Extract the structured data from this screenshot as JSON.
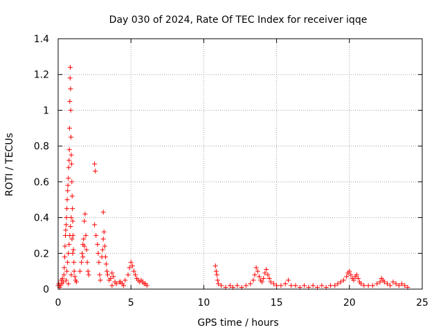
{
  "chart_data": {
    "type": "scatter",
    "title": "Day 030 of 2024, Rate Of TEC Index for receiver iqqe",
    "xlabel": "GPS time / hours",
    "ylabel": "ROTI / TECUs",
    "xlim": [
      0,
      25
    ],
    "ylim": [
      0,
      1.4
    ],
    "xticks": [
      0,
      5,
      10,
      15,
      20,
      25
    ],
    "xtick_labels": [
      "0",
      "5",
      "10",
      "15",
      "20",
      "25"
    ],
    "yticks": [
      0,
      0.2,
      0.4,
      0.6,
      0.8,
      1,
      1.2,
      1.4
    ],
    "ytick_labels": [
      "0",
      "0.2",
      "0.4",
      "0.6",
      "0.8",
      "1",
      "1.2",
      "1.4"
    ],
    "grid": true,
    "marker": "+",
    "series": [
      {
        "name": "ROTI",
        "color": "#ff0000",
        "points": [
          [
            0.0,
            0.02
          ],
          [
            0.05,
            0.03
          ],
          [
            0.1,
            0.01
          ],
          [
            0.15,
            0.02
          ],
          [
            0.2,
            0.05
          ],
          [
            0.25,
            0.03
          ],
          [
            0.3,
            0.06
          ],
          [
            0.35,
            0.04
          ],
          [
            0.4,
            0.08
          ],
          [
            0.42,
            0.12
          ],
          [
            0.45,
            0.18
          ],
          [
            0.47,
            0.24
          ],
          [
            0.5,
            0.3
          ],
          [
            0.52,
            0.33
          ],
          [
            0.55,
            0.36
          ],
          [
            0.57,
            0.4
          ],
          [
            0.6,
            0.45
          ],
          [
            0.62,
            0.5
          ],
          [
            0.65,
            0.55
          ],
          [
            0.67,
            0.58
          ],
          [
            0.7,
            0.62
          ],
          [
            0.72,
            0.68
          ],
          [
            0.75,
            0.72
          ],
          [
            0.77,
            0.78
          ],
          [
            0.78,
            0.9
          ],
          [
            0.8,
            1.05
          ],
          [
            0.82,
            1.18
          ],
          [
            0.83,
            1.24
          ],
          [
            0.85,
            1.12
          ],
          [
            0.86,
            1.0
          ],
          [
            0.88,
            0.85
          ],
          [
            0.9,
            0.75
          ],
          [
            0.92,
            0.7
          ],
          [
            0.94,
            0.6
          ],
          [
            0.96,
            0.52
          ],
          [
            0.98,
            0.45
          ],
          [
            1.0,
            0.38
          ],
          [
            1.02,
            0.3
          ],
          [
            1.05,
            0.22
          ],
          [
            1.08,
            0.15
          ],
          [
            1.1,
            0.1
          ],
          [
            1.15,
            0.07
          ],
          [
            1.2,
            0.05
          ],
          [
            1.25,
            0.04
          ],
          [
            0.6,
            0.1
          ],
          [
            0.65,
            0.15
          ],
          [
            0.7,
            0.2
          ],
          [
            0.75,
            0.25
          ],
          [
            0.8,
            0.3
          ],
          [
            0.85,
            0.35
          ],
          [
            0.9,
            0.4
          ],
          [
            0.95,
            0.28
          ],
          [
            1.0,
            0.2
          ],
          [
            0.55,
            0.05
          ],
          [
            0.7,
            0.03
          ],
          [
            0.9,
            0.08
          ],
          [
            1.5,
            0.1
          ],
          [
            1.6,
            0.15
          ],
          [
            1.65,
            0.2
          ],
          [
            1.7,
            0.25
          ],
          [
            1.75,
            0.28
          ],
          [
            1.8,
            0.38
          ],
          [
            1.85,
            0.42
          ],
          [
            1.9,
            0.3
          ],
          [
            1.95,
            0.22
          ],
          [
            2.0,
            0.15
          ],
          [
            2.05,
            0.1
          ],
          [
            2.1,
            0.08
          ],
          [
            1.7,
            0.18
          ],
          [
            1.8,
            0.24
          ],
          [
            2.5,
            0.7
          ],
          [
            2.55,
            0.66
          ],
          [
            2.5,
            0.36
          ],
          [
            2.6,
            0.3
          ],
          [
            2.7,
            0.25
          ],
          [
            2.75,
            0.2
          ],
          [
            2.8,
            0.15
          ],
          [
            2.85,
            0.08
          ],
          [
            2.9,
            0.05
          ],
          [
            3.0,
            0.18
          ],
          [
            3.05,
            0.22
          ],
          [
            3.1,
            0.28
          ],
          [
            3.1,
            0.43
          ],
          [
            3.15,
            0.32
          ],
          [
            3.2,
            0.24
          ],
          [
            3.25,
            0.18
          ],
          [
            3.3,
            0.14
          ],
          [
            3.35,
            0.1
          ],
          [
            3.4,
            0.08
          ],
          [
            3.5,
            0.05
          ],
          [
            3.6,
            0.06
          ],
          [
            3.7,
            0.09
          ],
          [
            3.8,
            0.07
          ],
          [
            3.9,
            0.04
          ],
          [
            4.0,
            0.03
          ],
          [
            4.2,
            0.04
          ],
          [
            4.4,
            0.03
          ],
          [
            4.6,
            0.05
          ],
          [
            4.8,
            0.08
          ],
          [
            4.9,
            0.12
          ],
          [
            5.0,
            0.15
          ],
          [
            5.1,
            0.13
          ],
          [
            5.2,
            0.1
          ],
          [
            5.3,
            0.08
          ],
          [
            5.4,
            0.06
          ],
          [
            5.5,
            0.05
          ],
          [
            5.6,
            0.04
          ],
          [
            5.7,
            0.05
          ],
          [
            5.8,
            0.04
          ],
          [
            5.9,
            0.03
          ],
          [
            6.0,
            0.03
          ],
          [
            6.1,
            0.02
          ],
          [
            4.5,
            0.02
          ],
          [
            4.3,
            0.04
          ],
          [
            3.7,
            0.02
          ],
          [
            10.8,
            0.13
          ],
          [
            10.85,
            0.1
          ],
          [
            10.9,
            0.08
          ],
          [
            10.95,
            0.05
          ],
          [
            11.0,
            0.03
          ],
          [
            11.2,
            0.02
          ],
          [
            11.5,
            0.01
          ],
          [
            11.8,
            0.02
          ],
          [
            12.0,
            0.01
          ],
          [
            12.3,
            0.02
          ],
          [
            12.6,
            0.01
          ],
          [
            12.9,
            0.02
          ],
          [
            13.2,
            0.03
          ],
          [
            13.4,
            0.05
          ],
          [
            13.5,
            0.08
          ],
          [
            13.6,
            0.12
          ],
          [
            13.7,
            0.1
          ],
          [
            13.8,
            0.07
          ],
          [
            13.9,
            0.05
          ],
          [
            14.0,
            0.04
          ],
          [
            14.1,
            0.06
          ],
          [
            14.2,
            0.09
          ],
          [
            14.3,
            0.11
          ],
          [
            14.4,
            0.08
          ],
          [
            14.5,
            0.06
          ],
          [
            14.6,
            0.04
          ],
          [
            14.8,
            0.03
          ],
          [
            15.0,
            0.02
          ],
          [
            15.3,
            0.02
          ],
          [
            15.6,
            0.03
          ],
          [
            15.8,
            0.05
          ],
          [
            16.0,
            0.02
          ],
          [
            16.3,
            0.02
          ],
          [
            16.6,
            0.01
          ],
          [
            16.9,
            0.02
          ],
          [
            17.2,
            0.01
          ],
          [
            17.5,
            0.02
          ],
          [
            17.8,
            0.01
          ],
          [
            18.1,
            0.02
          ],
          [
            18.4,
            0.01
          ],
          [
            18.7,
            0.02
          ],
          [
            19.0,
            0.02
          ],
          [
            19.2,
            0.03
          ],
          [
            19.4,
            0.04
          ],
          [
            19.6,
            0.05
          ],
          [
            19.8,
            0.07
          ],
          [
            19.9,
            0.09
          ],
          [
            20.0,
            0.1
          ],
          [
            20.1,
            0.08
          ],
          [
            20.2,
            0.06
          ],
          [
            20.3,
            0.05
          ],
          [
            20.4,
            0.07
          ],
          [
            20.5,
            0.08
          ],
          [
            20.6,
            0.06
          ],
          [
            20.7,
            0.04
          ],
          [
            20.8,
            0.03
          ],
          [
            21.0,
            0.02
          ],
          [
            21.3,
            0.02
          ],
          [
            21.6,
            0.02
          ],
          [
            21.9,
            0.03
          ],
          [
            22.1,
            0.04
          ],
          [
            22.2,
            0.06
          ],
          [
            22.3,
            0.05
          ],
          [
            22.4,
            0.04
          ],
          [
            22.6,
            0.03
          ],
          [
            22.8,
            0.02
          ],
          [
            23.0,
            0.04
          ],
          [
            23.2,
            0.03
          ],
          [
            23.4,
            0.02
          ],
          [
            23.6,
            0.03
          ],
          [
            23.8,
            0.02
          ],
          [
            24.0,
            0.01
          ]
        ]
      }
    ]
  }
}
